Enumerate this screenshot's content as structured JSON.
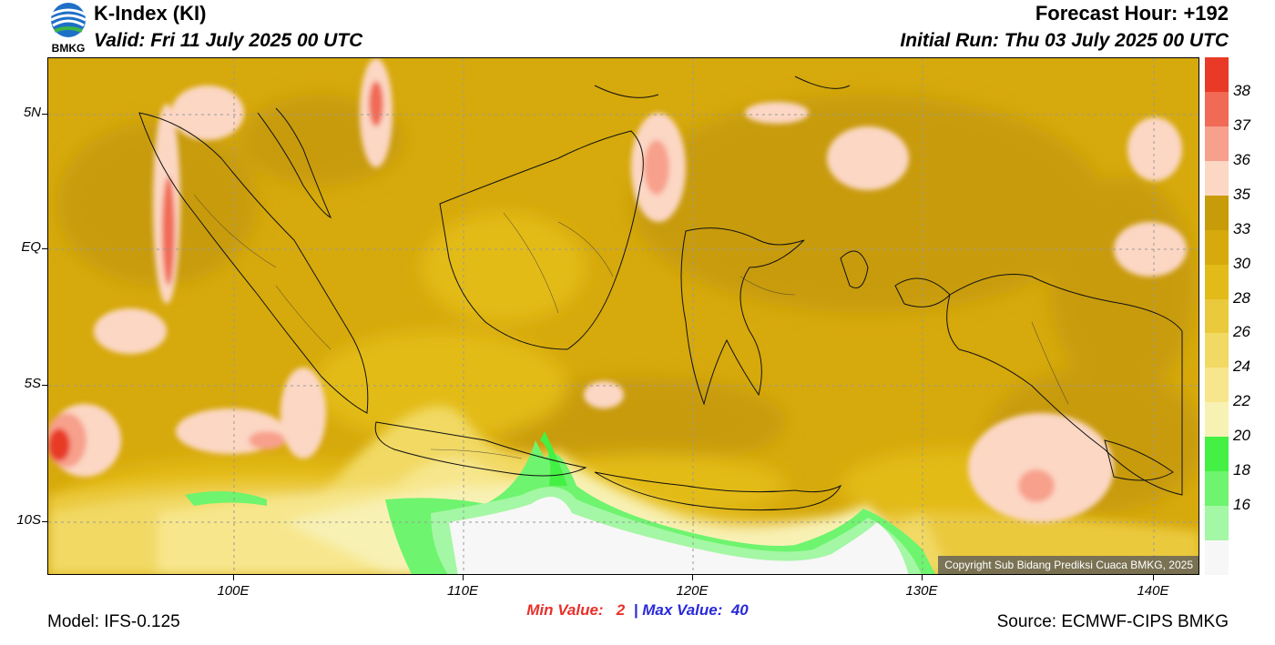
{
  "header": {
    "logo_text": "BMKG",
    "title": "K-Index (KI)",
    "valid": "Valid: Fri 11 July 2025 00 UTC",
    "forecast_hour": "Forecast Hour: +192",
    "initial_run": "Initial Run: Thu 03 July 2025 00 UTC"
  },
  "map": {
    "lat_labels": [
      "5N",
      "EQ",
      "5S",
      "10S"
    ],
    "lon_labels": [
      "100E",
      "110E",
      "120E",
      "130E",
      "140E"
    ],
    "copyright": "Copyright Sub Bidang Prediksi Cuaca BMKG, 2025",
    "background_color": "#d6a90c"
  },
  "colorbar": {
    "labels": [
      "38",
      "37",
      "36",
      "35",
      "33",
      "30",
      "28",
      "26",
      "24",
      "22",
      "20",
      "18",
      "16"
    ],
    "colors": [
      "#e83a26",
      "#f06a55",
      "#f7a08c",
      "#fcd7c4",
      "#c89b08",
      "#d6a90c",
      "#e3bb19",
      "#ebc93c",
      "#f1d964",
      "#f7e68c",
      "#f8f1b4",
      "#44f044",
      "#6ef46e",
      "#a4f7a4",
      "#f7f7f7"
    ]
  },
  "footer": {
    "min_label": "Min Value:",
    "min_value": "2",
    "separator": "|",
    "max_label": "Max Value:",
    "max_value": "40",
    "model": "Model: IFS-0.125",
    "source": "Source: ECMWF-CIPS BMKG"
  }
}
